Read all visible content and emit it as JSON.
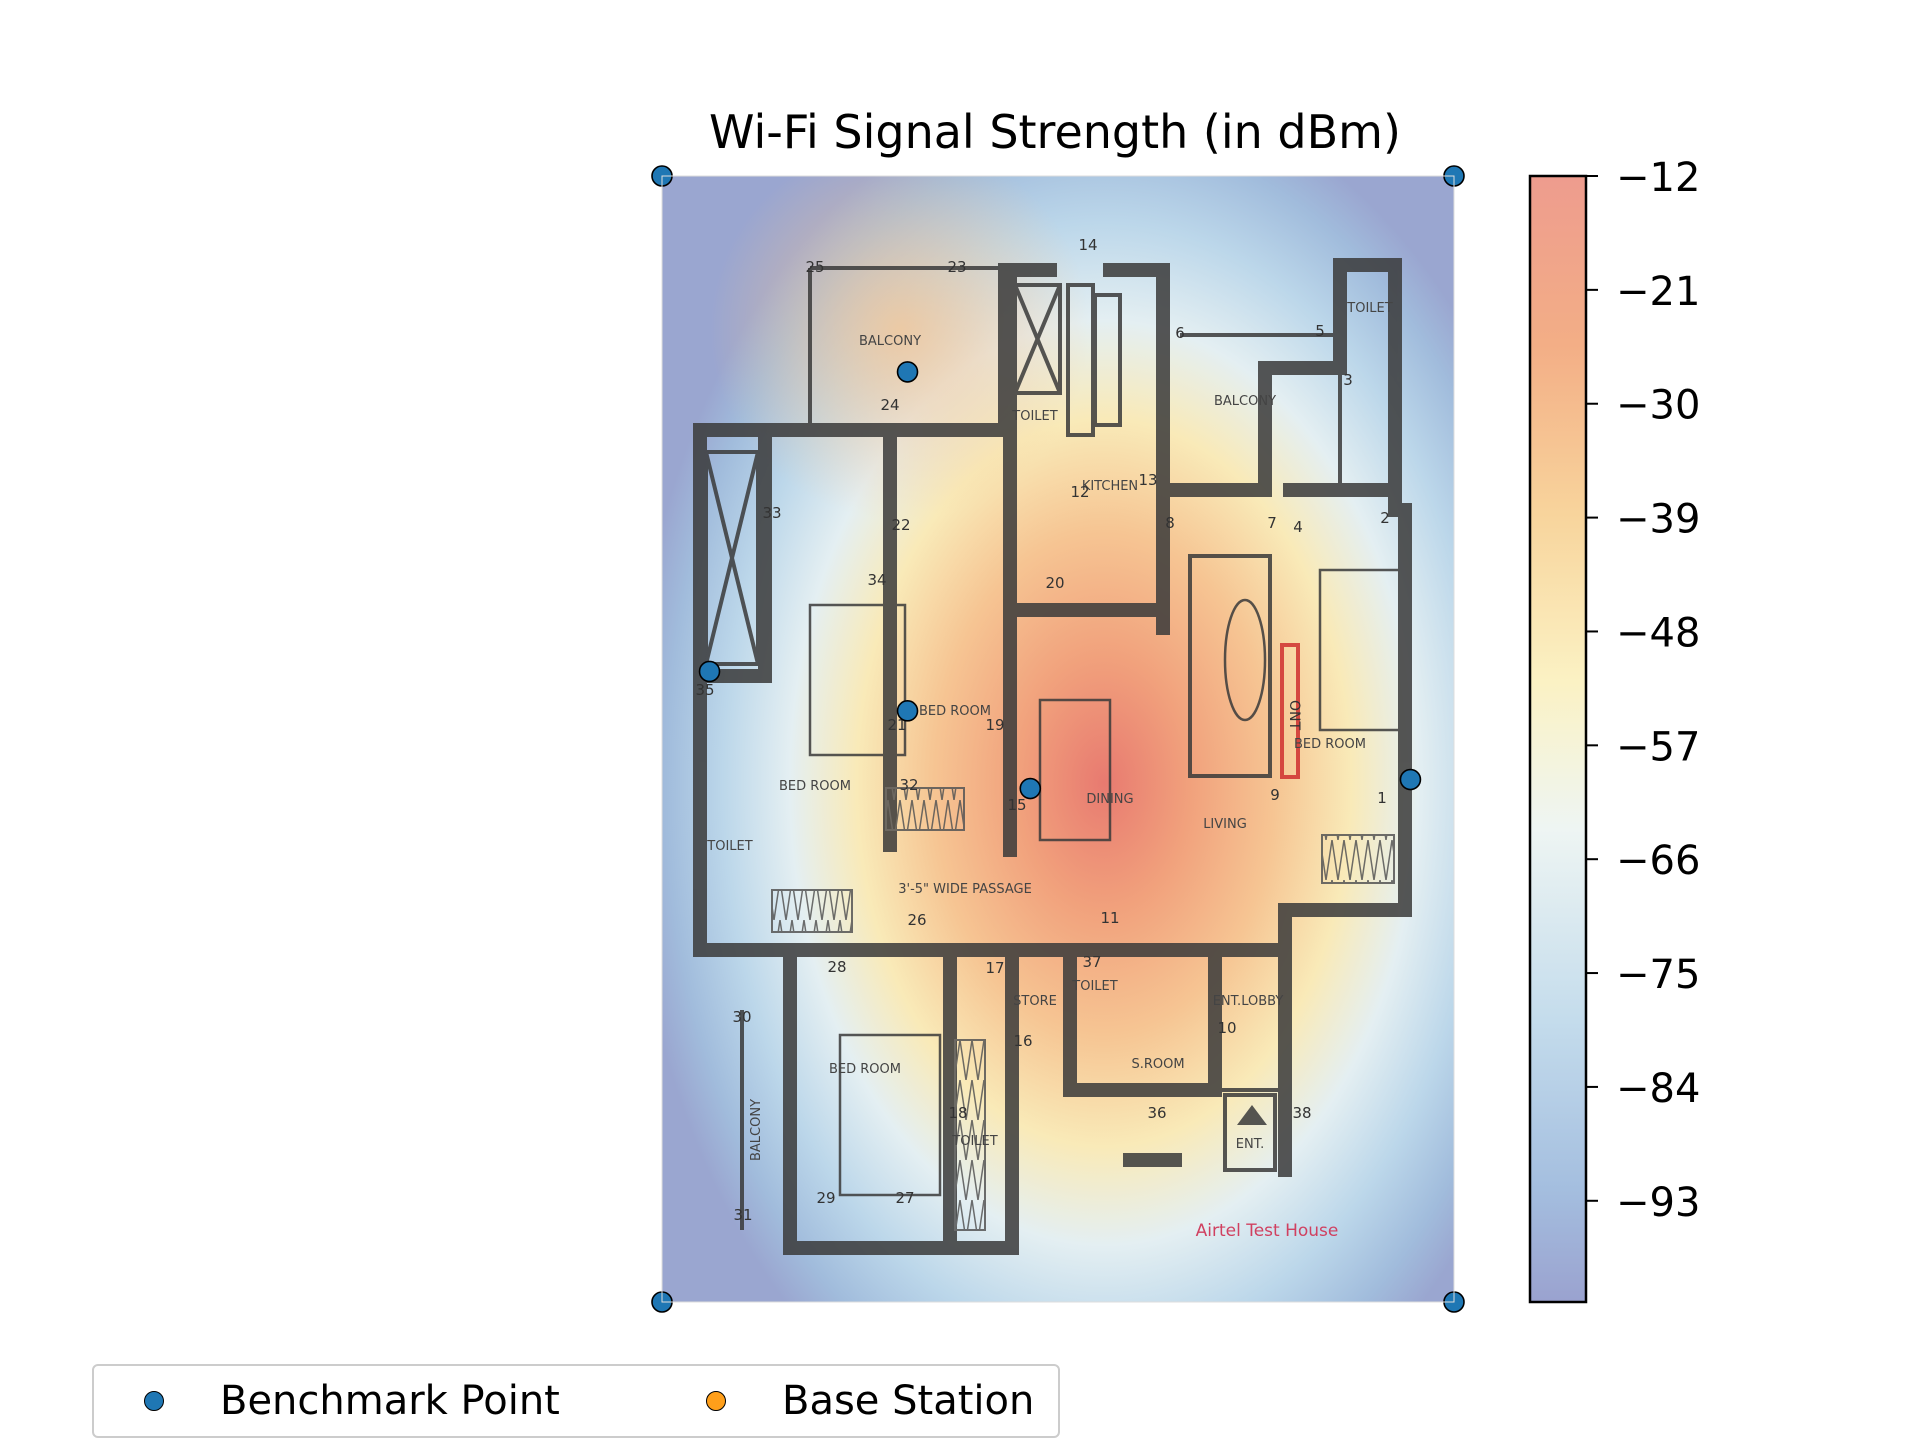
{
  "chart_data": {
    "type": "heatmap",
    "title": "Wi-Fi Signal Strength (in dBm)",
    "colorbar": {
      "ticks": [
        -12,
        -21,
        -30,
        -39,
        -48,
        -57,
        -66,
        -75,
        -84,
        -93
      ],
      "tick_labels": [
        "−12",
        "−21",
        "−30",
        "−39",
        "−48",
        "−57",
        "−66",
        "−75",
        "−84",
        "−93"
      ],
      "range": [
        -101,
        -12
      ],
      "colormap": "RdYlBu_r",
      "alpha": 0.5
    },
    "background_image": "floor plan",
    "benchmark_points": [
      {
        "x": 0.31,
        "y": 0.826
      },
      {
        "x": 0.06,
        "y": 0.56
      },
      {
        "x": 0.31,
        "y": 0.525
      },
      {
        "x": 0.465,
        "y": 0.456
      },
      {
        "x": 0.945,
        "y": 0.464
      },
      {
        "x": 0.0,
        "y": 1.0
      },
      {
        "x": 1.0,
        "y": 1.0
      },
      {
        "x": 0.0,
        "y": 0.0
      },
      {
        "x": 1.0,
        "y": 0.0
      }
    ],
    "signal_peak": {
      "x": 0.52,
      "y": 0.46
    },
    "legend": {
      "placement": "bottom-left",
      "entries": [
        {
          "label": "Benchmark Point",
          "color": "#1f77b4"
        },
        {
          "label": "Base Station",
          "color": "#ff9f1a"
        }
      ]
    },
    "floorplan_labels": {
      "balcony_top": "BALCONY",
      "balcony_right": "BALCONY",
      "balcony_left": "BALCONY",
      "kitchen": "KITCHEN",
      "toilet_a": "TOILET",
      "toilet_b": "TOILET",
      "toilet_c": "TOILET",
      "toilet_d": "TOILET",
      "toilet_e": "TOILET",
      "bedroom_a": "BED ROOM",
      "bedroom_b": "BED ROOM",
      "bedroom_c": "BED ROOM",
      "bedroom_d": "BED ROOM",
      "dining": "DINING",
      "living": "LIVING",
      "passage": "3'-5\" WIDE PASSAGE",
      "store": "STORE",
      "sroom": "S.ROOM",
      "entlobby": "ENT.LOBBY",
      "ent": "ENT.",
      "ont": "ONT",
      "house_name": "Airtel Test House"
    },
    "floorplan_numbers": [
      "25",
      "23",
      "14",
      "6",
      "5",
      "3",
      "24",
      "33",
      "22",
      "12",
      "13",
      "8",
      "7",
      "4",
      "2",
      "34",
      "20",
      "35",
      "21",
      "19",
      "15",
      "32",
      "9",
      "1",
      "26",
      "11",
      "28",
      "37",
      "17",
      "30",
      "16",
      "10",
      "18",
      "36",
      "38",
      "29",
      "27",
      "31"
    ]
  }
}
